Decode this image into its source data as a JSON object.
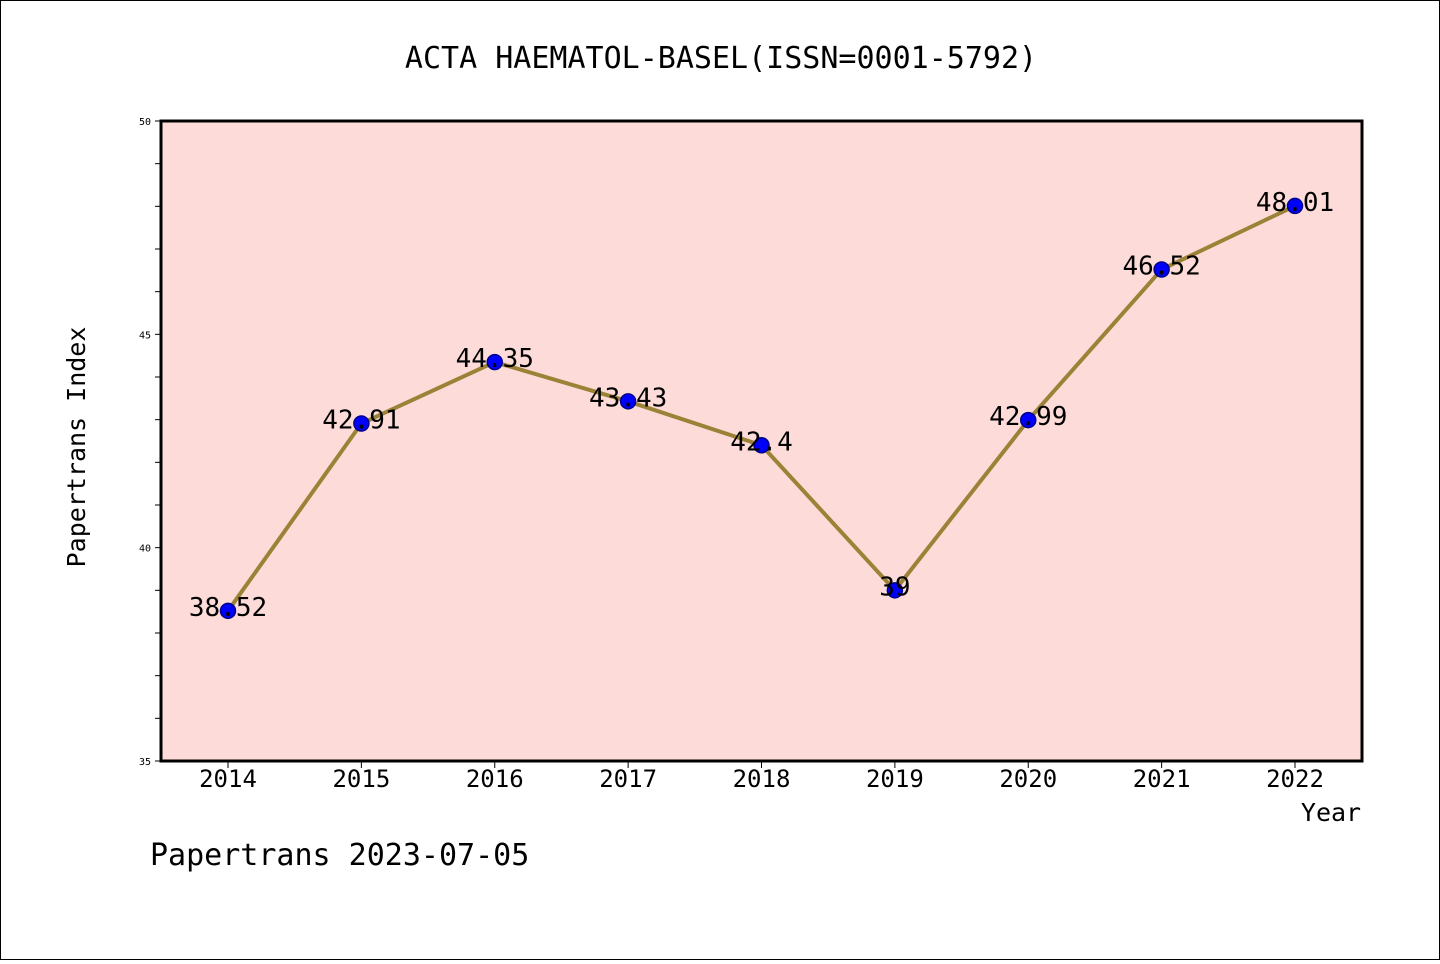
{
  "chart_data": {
    "type": "line",
    "title": "ACTA HAEMATOL-BASEL(ISSN=0001-5792)",
    "xlabel": "Year",
    "ylabel": "Papertrans Index",
    "categories": [
      "2014",
      "2015",
      "2016",
      "2017",
      "2018",
      "2019",
      "2020",
      "2021",
      "2022"
    ],
    "values": [
      38.52,
      42.91,
      44.35,
      43.43,
      42.4,
      39,
      42.99,
      46.52,
      48.01
    ],
    "data_labels": [
      "38.52",
      "42.91",
      "44.35",
      "43.43",
      "42.4",
      "39",
      "42.99",
      "46.52",
      "48.01"
    ],
    "ylim": [
      35,
      50
    ],
    "yticks": [
      "35",
      "40",
      "45",
      "50"
    ],
    "grid": false,
    "colors": {
      "plot_background": "#FDDBD8",
      "line": "#9B8236",
      "marker": "#0000FF",
      "marker_edge": "#00008B"
    }
  },
  "footer": "Papertrans 2023-07-05"
}
